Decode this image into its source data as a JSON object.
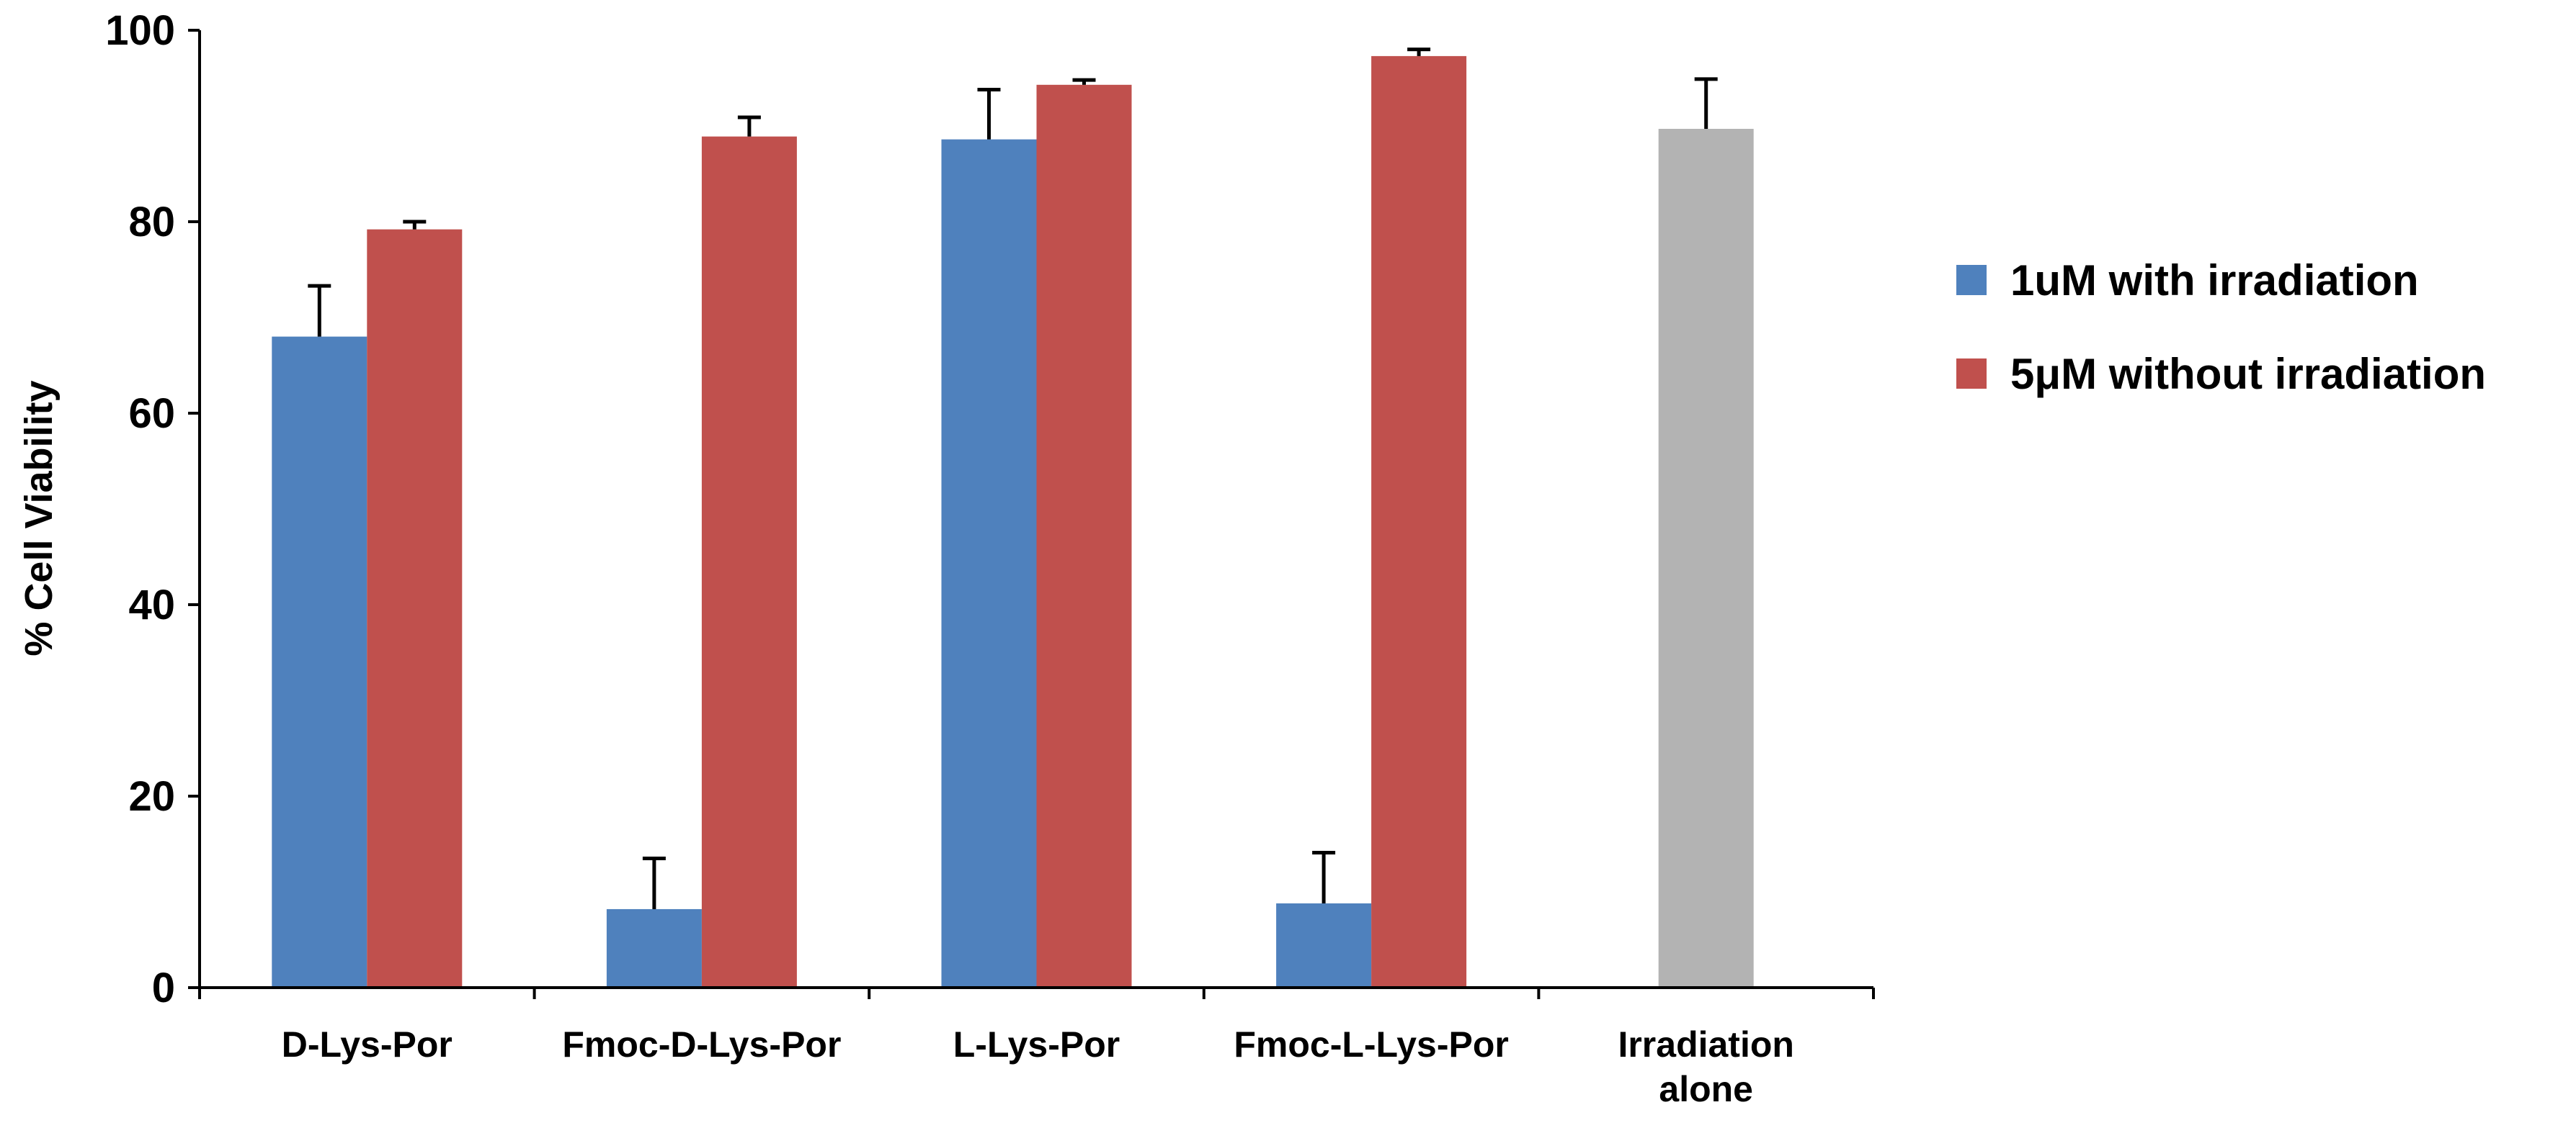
{
  "chart_data": {
    "type": "bar",
    "title": "",
    "xlabel": "",
    "ylabel": "% Cell Viability",
    "ylim": [
      0,
      100
    ],
    "yticks": [
      0,
      20,
      40,
      60,
      80,
      100
    ],
    "grid": false,
    "legend_position": "right",
    "categories": [
      [
        "D-Lys-Por"
      ],
      [
        "Fmoc-D-Lys-Por"
      ],
      [
        "L-Lys-Por"
      ],
      [
        "Fmoc-L-Lys-Por"
      ],
      [
        "Irradiation",
        "alone"
      ]
    ],
    "series": [
      {
        "name": "1uM with irradiation",
        "color": "#4f81bd",
        "values": [
          68,
          8.2,
          88.6,
          8.8,
          null
        ],
        "errors": [
          5.3,
          5.3,
          5.2,
          5.3,
          null
        ]
      },
      {
        "name": "5μM without irradiation",
        "color": "#c0504d",
        "values": [
          79.2,
          88.9,
          94.3,
          97.3,
          null
        ],
        "errors": [
          0.8,
          2.0,
          0.5,
          0.7,
          null
        ]
      },
      {
        "name": "",
        "color": "#b3b3b3",
        "values": [
          null,
          null,
          null,
          null,
          89.7
        ],
        "errors": [
          null,
          null,
          null,
          null,
          5.2
        ]
      }
    ]
  }
}
